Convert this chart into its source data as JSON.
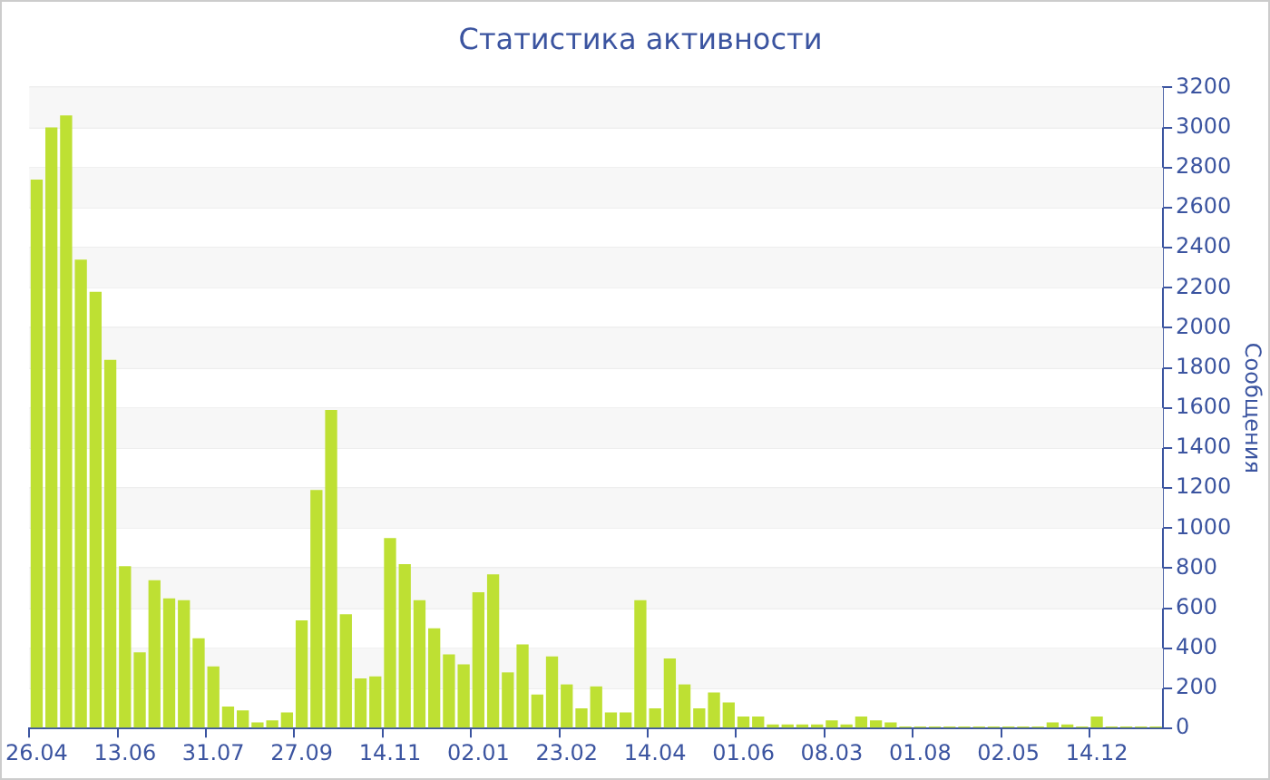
{
  "chart_data": {
    "type": "bar",
    "title": "Статистика активности",
    "ylabel": "Сообщения",
    "categories": [
      "26.04",
      null,
      null,
      null,
      null,
      null,
      "13.06",
      null,
      null,
      null,
      null,
      null,
      "31.07",
      null,
      null,
      null,
      null,
      null,
      "27.09",
      null,
      null,
      null,
      null,
      null,
      "14.11",
      null,
      null,
      null,
      null,
      null,
      "02.01",
      null,
      null,
      null,
      null,
      null,
      "23.02",
      null,
      null,
      null,
      null,
      null,
      "14.04",
      null,
      null,
      null,
      null,
      null,
      "01.06",
      null,
      null,
      null,
      null,
      null,
      "08.03",
      null,
      null,
      null,
      null,
      null,
      "01.08",
      null,
      null,
      null,
      null,
      null,
      "02.05",
      null,
      null,
      null,
      null,
      null,
      "14.12",
      null,
      null,
      null,
      null
    ],
    "values": [
      2740,
      3000,
      3060,
      2340,
      2180,
      1840,
      810,
      380,
      740,
      650,
      640,
      450,
      310,
      110,
      90,
      30,
      40,
      80,
      540,
      1190,
      1590,
      570,
      250,
      260,
      950,
      820,
      640,
      500,
      370,
      320,
      680,
      770,
      280,
      420,
      170,
      360,
      220,
      100,
      210,
      80,
      80,
      640,
      100,
      350,
      220,
      100,
      180,
      130,
      60,
      60,
      20,
      20,
      20,
      20,
      40,
      20,
      60,
      40,
      30,
      10,
      10,
      10,
      10,
      10,
      10,
      10,
      10,
      10,
      10,
      30,
      20,
      10,
      60,
      10,
      10,
      10,
      10
    ],
    "color": "#bee033",
    "ylim": [
      0,
      3200
    ],
    "yticks": [
      0,
      200,
      400,
      600,
      800,
      1000,
      1200,
      1400,
      1600,
      1800,
      2000,
      2200,
      2400,
      2600,
      2800,
      3000,
      3200
    ],
    "grid": "y"
  }
}
